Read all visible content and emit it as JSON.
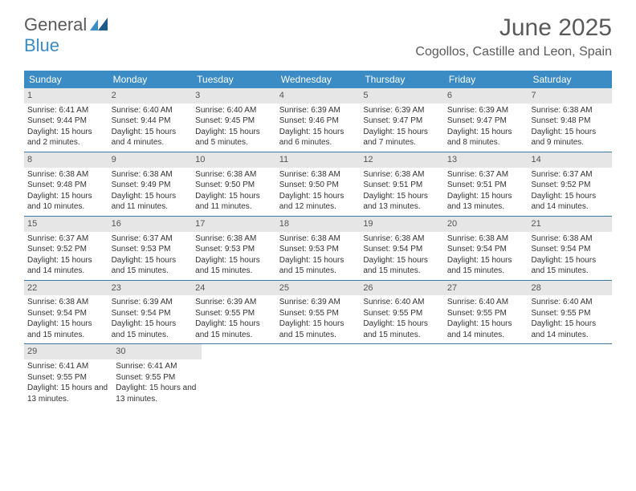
{
  "logo": {
    "text1": "General",
    "text2": "Blue"
  },
  "title": "June 2025",
  "location": "Cogollos, Castille and Leon, Spain",
  "colors": {
    "header_bg": "#3b8bc4",
    "header_text": "#ffffff",
    "daynum_bg": "#e6e6e6",
    "rule": "#3b7aa8",
    "body_text": "#333333",
    "title_text": "#5a5a5a"
  },
  "day_names": [
    "Sunday",
    "Monday",
    "Tuesday",
    "Wednesday",
    "Thursday",
    "Friday",
    "Saturday"
  ],
  "weeks": [
    [
      {
        "n": "1",
        "sr": "Sunrise: 6:41 AM",
        "ss": "Sunset: 9:44 PM",
        "dl": "Daylight: 15 hours and 2 minutes."
      },
      {
        "n": "2",
        "sr": "Sunrise: 6:40 AM",
        "ss": "Sunset: 9:44 PM",
        "dl": "Daylight: 15 hours and 4 minutes."
      },
      {
        "n": "3",
        "sr": "Sunrise: 6:40 AM",
        "ss": "Sunset: 9:45 PM",
        "dl": "Daylight: 15 hours and 5 minutes."
      },
      {
        "n": "4",
        "sr": "Sunrise: 6:39 AM",
        "ss": "Sunset: 9:46 PM",
        "dl": "Daylight: 15 hours and 6 minutes."
      },
      {
        "n": "5",
        "sr": "Sunrise: 6:39 AM",
        "ss": "Sunset: 9:47 PM",
        "dl": "Daylight: 15 hours and 7 minutes."
      },
      {
        "n": "6",
        "sr": "Sunrise: 6:39 AM",
        "ss": "Sunset: 9:47 PM",
        "dl": "Daylight: 15 hours and 8 minutes."
      },
      {
        "n": "7",
        "sr": "Sunrise: 6:38 AM",
        "ss": "Sunset: 9:48 PM",
        "dl": "Daylight: 15 hours and 9 minutes."
      }
    ],
    [
      {
        "n": "8",
        "sr": "Sunrise: 6:38 AM",
        "ss": "Sunset: 9:48 PM",
        "dl": "Daylight: 15 hours and 10 minutes."
      },
      {
        "n": "9",
        "sr": "Sunrise: 6:38 AM",
        "ss": "Sunset: 9:49 PM",
        "dl": "Daylight: 15 hours and 11 minutes."
      },
      {
        "n": "10",
        "sr": "Sunrise: 6:38 AM",
        "ss": "Sunset: 9:50 PM",
        "dl": "Daylight: 15 hours and 11 minutes."
      },
      {
        "n": "11",
        "sr": "Sunrise: 6:38 AM",
        "ss": "Sunset: 9:50 PM",
        "dl": "Daylight: 15 hours and 12 minutes."
      },
      {
        "n": "12",
        "sr": "Sunrise: 6:38 AM",
        "ss": "Sunset: 9:51 PM",
        "dl": "Daylight: 15 hours and 13 minutes."
      },
      {
        "n": "13",
        "sr": "Sunrise: 6:37 AM",
        "ss": "Sunset: 9:51 PM",
        "dl": "Daylight: 15 hours and 13 minutes."
      },
      {
        "n": "14",
        "sr": "Sunrise: 6:37 AM",
        "ss": "Sunset: 9:52 PM",
        "dl": "Daylight: 15 hours and 14 minutes."
      }
    ],
    [
      {
        "n": "15",
        "sr": "Sunrise: 6:37 AM",
        "ss": "Sunset: 9:52 PM",
        "dl": "Daylight: 15 hours and 14 minutes."
      },
      {
        "n": "16",
        "sr": "Sunrise: 6:37 AM",
        "ss": "Sunset: 9:53 PM",
        "dl": "Daylight: 15 hours and 15 minutes."
      },
      {
        "n": "17",
        "sr": "Sunrise: 6:38 AM",
        "ss": "Sunset: 9:53 PM",
        "dl": "Daylight: 15 hours and 15 minutes."
      },
      {
        "n": "18",
        "sr": "Sunrise: 6:38 AM",
        "ss": "Sunset: 9:53 PM",
        "dl": "Daylight: 15 hours and 15 minutes."
      },
      {
        "n": "19",
        "sr": "Sunrise: 6:38 AM",
        "ss": "Sunset: 9:54 PM",
        "dl": "Daylight: 15 hours and 15 minutes."
      },
      {
        "n": "20",
        "sr": "Sunrise: 6:38 AM",
        "ss": "Sunset: 9:54 PM",
        "dl": "Daylight: 15 hours and 15 minutes."
      },
      {
        "n": "21",
        "sr": "Sunrise: 6:38 AM",
        "ss": "Sunset: 9:54 PM",
        "dl": "Daylight: 15 hours and 15 minutes."
      }
    ],
    [
      {
        "n": "22",
        "sr": "Sunrise: 6:38 AM",
        "ss": "Sunset: 9:54 PM",
        "dl": "Daylight: 15 hours and 15 minutes."
      },
      {
        "n": "23",
        "sr": "Sunrise: 6:39 AM",
        "ss": "Sunset: 9:54 PM",
        "dl": "Daylight: 15 hours and 15 minutes."
      },
      {
        "n": "24",
        "sr": "Sunrise: 6:39 AM",
        "ss": "Sunset: 9:55 PM",
        "dl": "Daylight: 15 hours and 15 minutes."
      },
      {
        "n": "25",
        "sr": "Sunrise: 6:39 AM",
        "ss": "Sunset: 9:55 PM",
        "dl": "Daylight: 15 hours and 15 minutes."
      },
      {
        "n": "26",
        "sr": "Sunrise: 6:40 AM",
        "ss": "Sunset: 9:55 PM",
        "dl": "Daylight: 15 hours and 15 minutes."
      },
      {
        "n": "27",
        "sr": "Sunrise: 6:40 AM",
        "ss": "Sunset: 9:55 PM",
        "dl": "Daylight: 15 hours and 14 minutes."
      },
      {
        "n": "28",
        "sr": "Sunrise: 6:40 AM",
        "ss": "Sunset: 9:55 PM",
        "dl": "Daylight: 15 hours and 14 minutes."
      }
    ],
    [
      {
        "n": "29",
        "sr": "Sunrise: 6:41 AM",
        "ss": "Sunset: 9:55 PM",
        "dl": "Daylight: 15 hours and 13 minutes."
      },
      {
        "n": "30",
        "sr": "Sunrise: 6:41 AM",
        "ss": "Sunset: 9:55 PM",
        "dl": "Daylight: 15 hours and 13 minutes."
      },
      null,
      null,
      null,
      null,
      null
    ]
  ]
}
